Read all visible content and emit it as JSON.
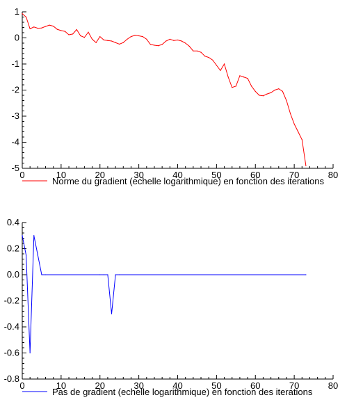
{
  "chart_data": [
    {
      "type": "line",
      "title": "",
      "xlabel": "",
      "ylabel": "",
      "xlim": [
        0,
        80
      ],
      "ylim": [
        -5,
        1
      ],
      "x_ticks": [
        "0",
        "10",
        "20",
        "30",
        "40",
        "50",
        "60",
        "70",
        "80"
      ],
      "y_ticks": [
        "1",
        "0",
        "-1",
        "-2",
        "-3",
        "-4",
        "-5"
      ],
      "x_tick_values": [
        0,
        10,
        20,
        30,
        40,
        50,
        60,
        70,
        80
      ],
      "y_tick_values": [
        1,
        0,
        -1,
        -2,
        -3,
        -4,
        -5
      ],
      "grid": false,
      "legend_position": "bottom-left",
      "series": [
        {
          "name": "Norme du gradient (echelle logarithmique) en fonction des iterations",
          "color": "#ff0000",
          "x": [
            0,
            1,
            2,
            3,
            4,
            5,
            6,
            7,
            8,
            9,
            10,
            11,
            12,
            13,
            14,
            15,
            16,
            17,
            18,
            19,
            20,
            21,
            22,
            23,
            24,
            25,
            26,
            27,
            28,
            29,
            30,
            31,
            32,
            33,
            34,
            35,
            36,
            37,
            38,
            39,
            40,
            41,
            42,
            43,
            44,
            45,
            46,
            47,
            48,
            49,
            50,
            51,
            52,
            53,
            54,
            55,
            56,
            57,
            58,
            59,
            60,
            61,
            62,
            63,
            64,
            65,
            66,
            67,
            68,
            69,
            70,
            71,
            72,
            73
          ],
          "y": [
            0.93,
            0.8,
            0.35,
            0.42,
            0.37,
            0.38,
            0.44,
            0.49,
            0.45,
            0.33,
            0.28,
            0.25,
            0.12,
            0.15,
            0.32,
            0.08,
            0.02,
            0.22,
            -0.05,
            -0.18,
            0.05,
            -0.08,
            -0.1,
            -0.12,
            -0.18,
            -0.24,
            -0.18,
            -0.05,
            0.05,
            0.1,
            0.08,
            0.05,
            -0.05,
            -0.25,
            -0.28,
            -0.3,
            -0.25,
            -0.12,
            -0.05,
            -0.1,
            -0.08,
            -0.12,
            -0.2,
            -0.32,
            -0.5,
            -0.5,
            -0.55,
            -0.7,
            -0.75,
            -0.85,
            -1.05,
            -1.25,
            -1.0,
            -1.5,
            -1.9,
            -1.85,
            -1.45,
            -1.5,
            -1.55,
            -1.85,
            -2.05,
            -2.2,
            -2.22,
            -2.15,
            -2.1,
            -2.0,
            -1.95,
            -2.05,
            -2.4,
            -2.9,
            -3.3,
            -3.6,
            -3.9,
            -4.9
          ]
        }
      ]
    },
    {
      "type": "line",
      "title": "",
      "xlabel": "",
      "ylabel": "",
      "xlim": [
        0,
        80
      ],
      "ylim": [
        -0.8,
        0.4
      ],
      "x_ticks": [
        "0",
        "10",
        "20",
        "30",
        "40",
        "50",
        "60",
        "70",
        "80"
      ],
      "y_ticks": [
        "0.4",
        "0.2",
        "0.0",
        "-0.2",
        "-0.4",
        "-0.6",
        "-0.8"
      ],
      "x_tick_values": [
        0,
        10,
        20,
        30,
        40,
        50,
        60,
        70,
        80
      ],
      "y_tick_values": [
        0.4,
        0.2,
        0.0,
        -0.2,
        -0.4,
        -0.6,
        -0.8
      ],
      "grid": false,
      "legend_position": "bottom-left",
      "series": [
        {
          "name": "Pas de gradient (echelle logarithmique) en fonction des iterations",
          "color": "#0000ff",
          "x": [
            0,
            1,
            2,
            3,
            4,
            5,
            6,
            20,
            21,
            22,
            23,
            24,
            25,
            73
          ],
          "y": [
            0.3,
            0.15,
            -0.6,
            0.3,
            0.15,
            0.0,
            0.0,
            0.0,
            0.0,
            0.0,
            -0.3,
            0.0,
            0.0,
            0.0
          ]
        }
      ]
    }
  ]
}
